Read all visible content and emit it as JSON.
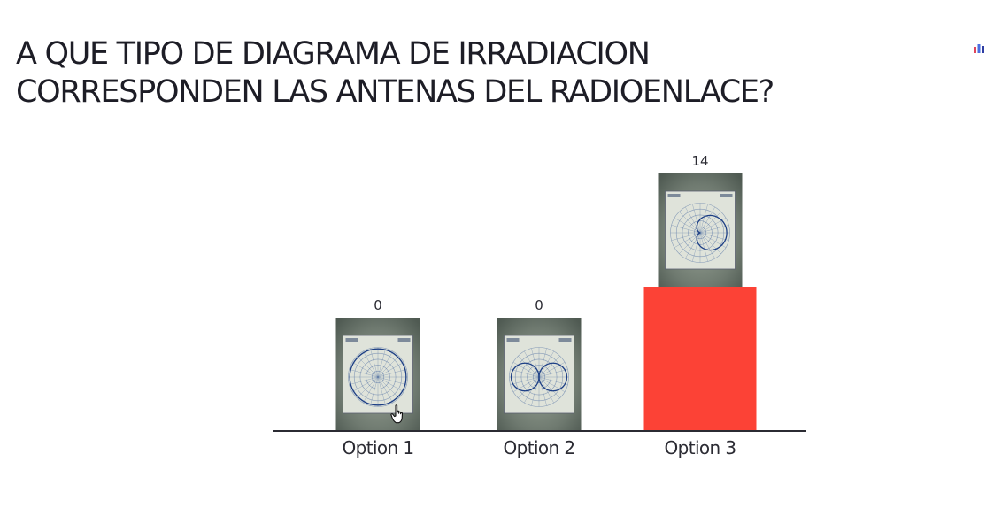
{
  "question": {
    "line1": "A QUE TIPO DE DIAGRAMA DE IRRADIACION",
    "line2": "CORRESPONDEN LAS ANTENAS DEL RADIOENLACE?"
  },
  "icons": {
    "brand": "mentimeter-logo-icon",
    "cursor": "hand-pointer-icon"
  },
  "colors": {
    "title": "#1d1d26",
    "bar_highlight": "#fc4236",
    "photo_bg": "#6f7a70",
    "photo_paper": "#dfe3da",
    "photo_ink": "#3c5f9a",
    "axis": "#2b2b33"
  },
  "chart_data": {
    "type": "bar",
    "categories": [
      "Option 1",
      "Option 2",
      "Option 3"
    ],
    "values": [
      0,
      0,
      14
    ],
    "option_images": [
      "polar-omnidirectional-pattern",
      "polar-figure-eight-pattern",
      "polar-cardioid-pattern"
    ],
    "ylim": [
      0,
      14
    ],
    "xlabel": "",
    "ylabel": "",
    "grid": false
  }
}
